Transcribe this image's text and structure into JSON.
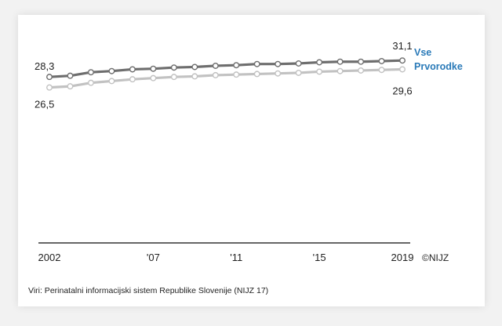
{
  "chart_data": {
    "type": "line",
    "x": [
      2002,
      2003,
      2004,
      2005,
      2006,
      2007,
      2008,
      2009,
      2010,
      2011,
      2012,
      2013,
      2014,
      2015,
      2016,
      2017,
      2018,
      2019
    ],
    "x_tick_values": [
      2002,
      2007,
      2011,
      2015,
      2019
    ],
    "x_tick_labels": [
      "2002",
      "'07",
      "'11",
      "'15",
      "2019"
    ],
    "ylim": [
      0,
      33
    ],
    "grid": false,
    "legend_placement": "right",
    "series": [
      {
        "name": "Vse",
        "color": "#6e6e6e",
        "values": [
          28.3,
          28.5,
          29.1,
          29.3,
          29.6,
          29.7,
          29.9,
          30.0,
          30.2,
          30.3,
          30.5,
          30.5,
          30.6,
          30.8,
          30.9,
          30.9,
          31.0,
          31.1
        ],
        "first_label": "28,3",
        "last_label": "31,1"
      },
      {
        "name": "Prvorodke",
        "color": "#c2c2c2",
        "values": [
          26.5,
          26.7,
          27.3,
          27.6,
          27.9,
          28.1,
          28.3,
          28.4,
          28.6,
          28.7,
          28.8,
          28.9,
          29.0,
          29.2,
          29.3,
          29.4,
          29.5,
          29.6
        ],
        "first_label": "26,5",
        "last_label": "29,6"
      }
    ],
    "legend_color": "#2a7ab8",
    "copyright": "©NIJZ",
    "source": "Viri: Perinatalni informacijski sistem Republike Slovenije (NIJZ 17)"
  }
}
